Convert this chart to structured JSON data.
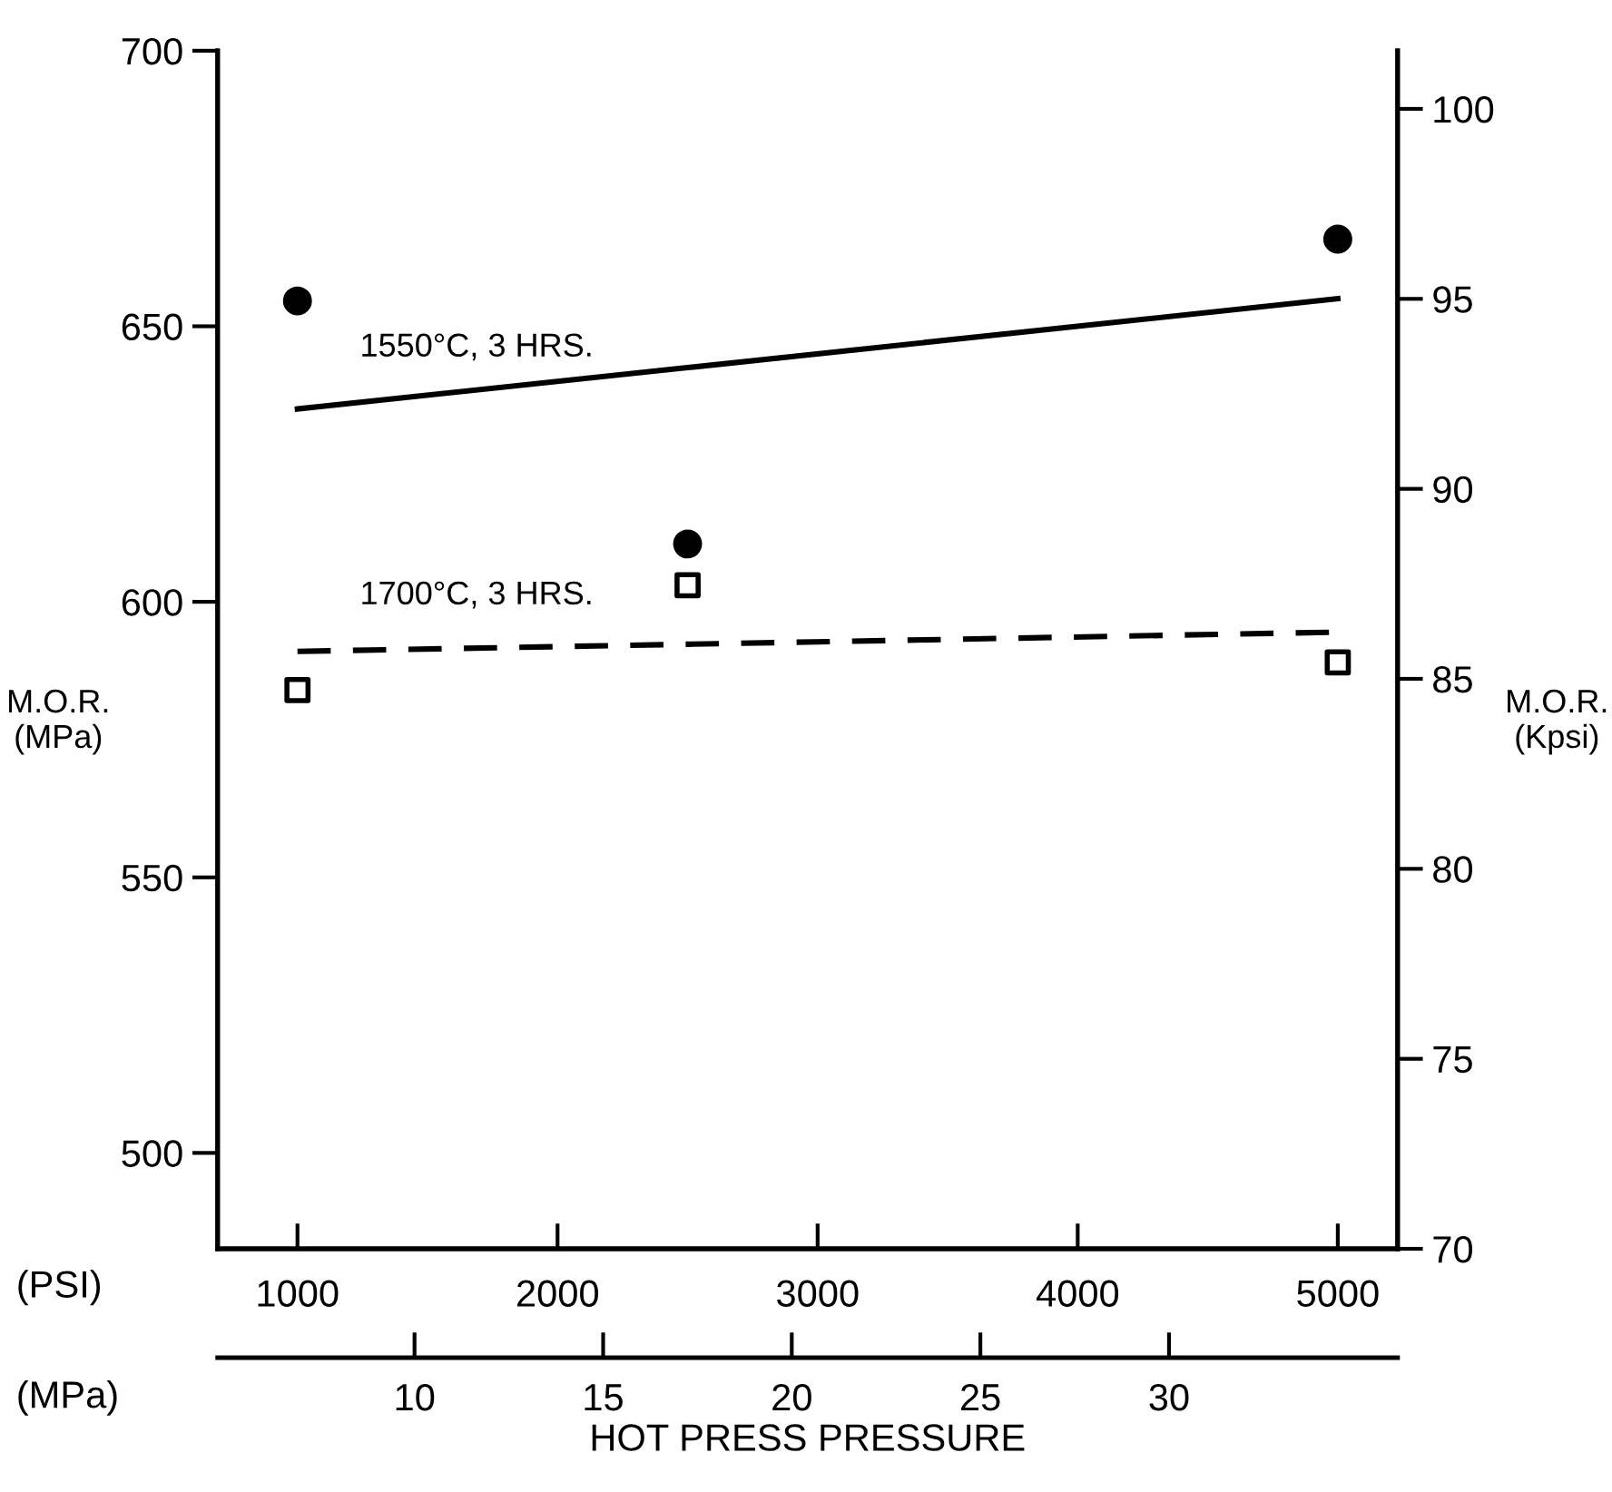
{
  "chart_data": {
    "type": "scatter",
    "xlabel": "HOT PRESS PRESSURE",
    "ylabel": "M.O.R.\n(MPa)",
    "y2label": "M.O.R.\n(Kpsi)",
    "annotations": [
      "(PSI)",
      "(MPa)"
    ],
    "x": [
      1000,
      2500,
      5000
    ],
    "series": [
      {
        "marker": "circle",
        "color": "#000000",
        "values": [
          654.6,
          610.5,
          665.8
        ]
      },
      {
        "marker": "square",
        "color": "#000000",
        "values": [
          584,
          603,
          589
        ]
      },
      {
        "type": "line",
        "name": "1550°C, 3 HRS.",
        "values": [
          635,
          642.5,
          655
        ],
        "line_style": "solid",
        "color": "#000000"
      },
      {
        "type": "line",
        "name": "1700°C, 3 HRS.",
        "values": [
          591,
          592.3,
          594.5
        ],
        "line_style": "dashed",
        "color": "#000000"
      }
    ],
    "xlim": [
      693,
      5230
    ],
    "xticks": [
      1000,
      2000,
      3000,
      4000,
      5000
    ],
    "x2lim": [
      4.78,
      36.06
    ],
    "x2ticks": [
      10,
      15,
      20,
      25,
      30
    ],
    "ylim": [
      482.6,
      700
    ],
    "yticks": [
      500,
      550,
      600,
      650,
      700
    ],
    "y2lim": [
      70,
      101.53
    ],
    "y2ticks": [
      70,
      75,
      80,
      85,
      90,
      95,
      100
    ],
    "grid": false,
    "legend": false
  }
}
